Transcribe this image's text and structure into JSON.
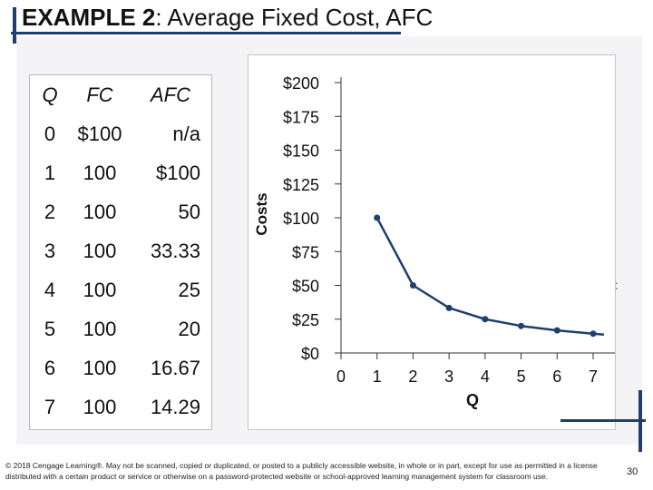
{
  "slide": {
    "title_bold": "EXAMPLE 2",
    "title_rest": ":  Average Fixed Cost, AFC",
    "footer": "© 2018 Cengage Learning®. May not be scanned, copied or duplicated, or posted to a publicly accessible website, in whole or in part, except for use as permitted in a license distributed with a certain product or service or otherwise on a password-protected website or school-approved learning management system for classroom use.",
    "page_number": "30",
    "stray_mark": ":"
  },
  "table": {
    "headers": [
      "Q",
      "FC",
      "AFC"
    ],
    "rows": [
      [
        "0",
        "$100",
        "n/a"
      ],
      [
        "1",
        "100",
        "$100"
      ],
      [
        "2",
        "100",
        "50"
      ],
      [
        "3",
        "100",
        "33.33"
      ],
      [
        "4",
        "100",
        "25"
      ],
      [
        "5",
        "100",
        "20"
      ],
      [
        "6",
        "100",
        "16.67"
      ],
      [
        "7",
        "100",
        "14.29"
      ]
    ]
  },
  "chart_data": {
    "type": "line",
    "xlabel": "Q",
    "ylabel": "Costs",
    "xlim": [
      0,
      7
    ],
    "ylim": [
      0,
      200
    ],
    "x_ticks": [
      "0",
      "1",
      "2",
      "3",
      "4",
      "5",
      "6",
      "7"
    ],
    "y_ticks": [
      "$0",
      "$25",
      "$50",
      "$75",
      "$100",
      "$125",
      "$150",
      "$175",
      "$200"
    ],
    "y_tick_values": [
      0,
      25,
      50,
      75,
      100,
      125,
      150,
      175,
      200
    ],
    "series": [
      {
        "x": [
          1,
          2,
          3,
          4,
          5,
          6,
          7
        ],
        "y": [
          100,
          50,
          33.33,
          25,
          20,
          16.67,
          14.29
        ],
        "color": "#1f3f6e"
      }
    ],
    "grid": false,
    "extends_right": true
  }
}
